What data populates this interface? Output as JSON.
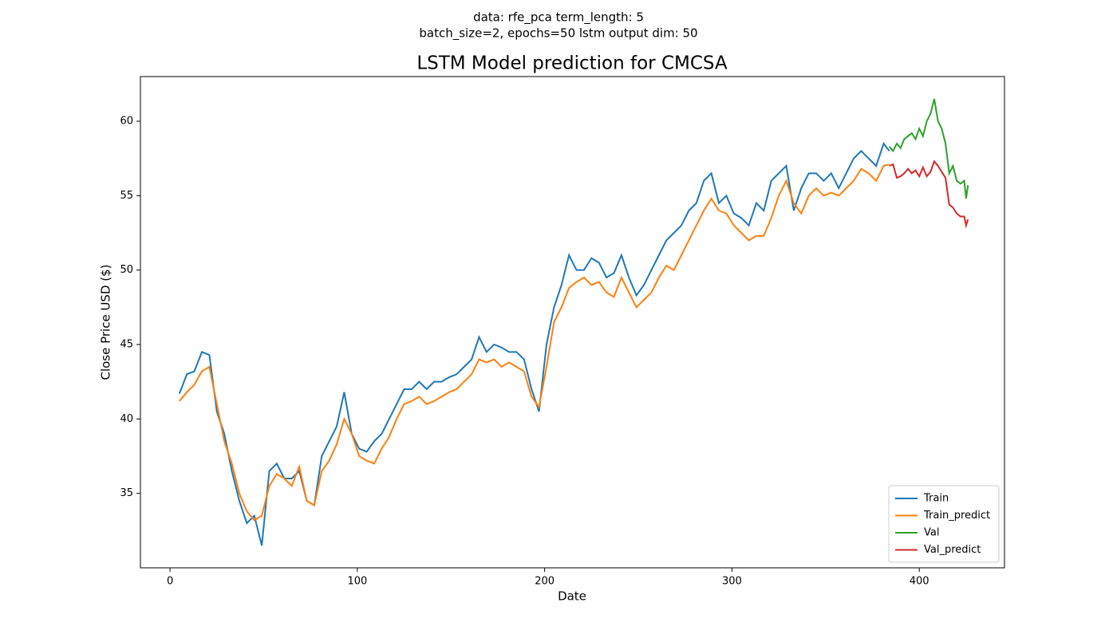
{
  "chart_data": {
    "type": "line",
    "suptitle": [
      "data: rfe_pca term_length: 5",
      "batch_size=2, epochs=50 lstm output dim: 50"
    ],
    "title": "LSTM Model prediction for CMCSA",
    "x_label": "Date",
    "y_label": "Close Price USD ($)",
    "xlim": [
      -15.8,
      445.5
    ],
    "ylim": [
      30.0,
      63.0
    ],
    "xticks": [
      0,
      100,
      200,
      300,
      400
    ],
    "yticks": [
      35,
      40,
      45,
      50,
      55,
      60
    ],
    "legend": "lower right",
    "grid": false,
    "series": [
      {
        "name": "Train",
        "color": "#1f77b4",
        "x": [
          5,
          9,
          13,
          17,
          21,
          25,
          29,
          33,
          37,
          41,
          45,
          49,
          53,
          57,
          61,
          65,
          69,
          73,
          77,
          81,
          85,
          89,
          93,
          97,
          101,
          105,
          109,
          113,
          117,
          121,
          125,
          129,
          133,
          137,
          141,
          145,
          149,
          153,
          157,
          161,
          165,
          169,
          173,
          177,
          181,
          185,
          189,
          193,
          197,
          201,
          205,
          209,
          213,
          217,
          221,
          225,
          229,
          233,
          237,
          241,
          245,
          249,
          253,
          257,
          261,
          265,
          269,
          273,
          277,
          281,
          285,
          289,
          293,
          297,
          301,
          305,
          309,
          313,
          317,
          321,
          325,
          329,
          333,
          337,
          341,
          345,
          349,
          353,
          357,
          361,
          365,
          369,
          373,
          377,
          381,
          384
        ],
        "values": [
          41.7,
          43.0,
          43.2,
          44.5,
          44.3,
          40.5,
          39.0,
          36.5,
          34.5,
          33.0,
          33.5,
          31.5,
          36.5,
          37.0,
          36.0,
          36.0,
          36.5,
          34.5,
          34.2,
          37.5,
          38.5,
          39.5,
          41.8,
          39.0,
          38.0,
          37.8,
          38.5,
          39.0,
          40.0,
          41.0,
          42.0,
          42.0,
          42.5,
          42.0,
          42.5,
          42.5,
          42.8,
          43.0,
          43.5,
          44.0,
          45.5,
          44.5,
          45.0,
          44.8,
          44.5,
          44.5,
          44.0,
          42.0,
          40.5,
          45.0,
          47.5,
          49.0,
          51.0,
          50.0,
          50.0,
          50.8,
          50.5,
          49.5,
          49.8,
          51.0,
          49.5,
          48.3,
          49.0,
          50.0,
          51.0,
          52.0,
          52.5,
          53.0,
          54.0,
          54.5,
          56.0,
          56.5,
          54.5,
          55.0,
          53.8,
          53.5,
          53.0,
          54.5,
          54.0,
          56.0,
          56.5,
          57.0,
          54.0,
          55.5,
          56.5,
          56.5,
          56.0,
          56.5,
          55.5,
          56.5,
          57.5,
          58.0,
          57.5,
          57.0,
          58.5,
          58.0
        ]
      },
      {
        "name": "Train_predict",
        "color": "#ff7f0e",
        "x": [
          5,
          9,
          13,
          17,
          21,
          25,
          29,
          33,
          37,
          41,
          45,
          49,
          53,
          57,
          61,
          65,
          69,
          73,
          77,
          81,
          85,
          89,
          93,
          97,
          101,
          105,
          109,
          113,
          117,
          121,
          125,
          129,
          133,
          137,
          141,
          145,
          149,
          153,
          157,
          161,
          165,
          169,
          173,
          177,
          181,
          185,
          189,
          193,
          197,
          201,
          205,
          209,
          213,
          217,
          221,
          225,
          229,
          233,
          237,
          241,
          245,
          249,
          253,
          257,
          261,
          265,
          269,
          273,
          277,
          281,
          285,
          289,
          293,
          297,
          301,
          305,
          309,
          313,
          317,
          321,
          325,
          329,
          333,
          337,
          341,
          345,
          349,
          353,
          357,
          361,
          365,
          369,
          373,
          377,
          381,
          384
        ],
        "values": [
          41.2,
          41.8,
          42.3,
          43.2,
          43.5,
          41.0,
          38.5,
          37.0,
          35.0,
          33.8,
          33.2,
          33.5,
          35.5,
          36.3,
          36.0,
          35.5,
          36.8,
          34.5,
          34.2,
          36.5,
          37.2,
          38.3,
          40.0,
          39.0,
          37.5,
          37.2,
          37.0,
          38.0,
          38.8,
          40.0,
          41.0,
          41.2,
          41.5,
          41.0,
          41.2,
          41.5,
          41.8,
          42.0,
          42.5,
          43.0,
          44.0,
          43.8,
          44.0,
          43.5,
          43.8,
          43.5,
          43.2,
          41.5,
          40.8,
          43.5,
          46.5,
          47.5,
          48.8,
          49.2,
          49.5,
          49.0,
          49.2,
          48.5,
          48.2,
          49.5,
          48.5,
          47.5,
          48.0,
          48.5,
          49.5,
          50.3,
          50.0,
          51.0,
          52.0,
          53.0,
          54.0,
          54.8,
          54.0,
          53.8,
          53.0,
          52.5,
          52.0,
          52.3,
          52.3,
          53.5,
          55.0,
          56.0,
          54.5,
          53.8,
          55.0,
          55.5,
          55.0,
          55.2,
          55.0,
          55.5,
          56.0,
          56.8,
          56.5,
          56.0,
          57.0,
          57.1
        ]
      },
      {
        "name": "Val",
        "color": "#2ca02c",
        "x": [
          384,
          386,
          388,
          390,
          392,
          394,
          396,
          398,
          400,
          402,
          404,
          406,
          408,
          410,
          412,
          414,
          416,
          418,
          420,
          422,
          424,
          425,
          426
        ],
        "values": [
          58.3,
          58.0,
          58.5,
          58.2,
          58.8,
          59.0,
          59.2,
          58.8,
          59.5,
          59.0,
          60.0,
          60.5,
          61.5,
          60.0,
          59.5,
          58.5,
          56.5,
          57.0,
          56.0,
          55.8,
          56.0,
          54.8,
          55.7
        ]
      },
      {
        "name": "Val_predict",
        "color": "#d62728",
        "x": [
          384,
          386,
          388,
          390,
          392,
          394,
          396,
          398,
          400,
          402,
          404,
          406,
          408,
          410,
          412,
          414,
          416,
          418,
          420,
          422,
          424,
          425,
          426
        ],
        "values": [
          57.0,
          57.1,
          56.2,
          56.3,
          56.5,
          56.8,
          56.5,
          56.7,
          56.3,
          56.9,
          56.3,
          56.6,
          57.3,
          57.0,
          56.6,
          56.2,
          54.4,
          54.2,
          53.8,
          53.6,
          53.6,
          53.0,
          53.4
        ]
      }
    ]
  }
}
